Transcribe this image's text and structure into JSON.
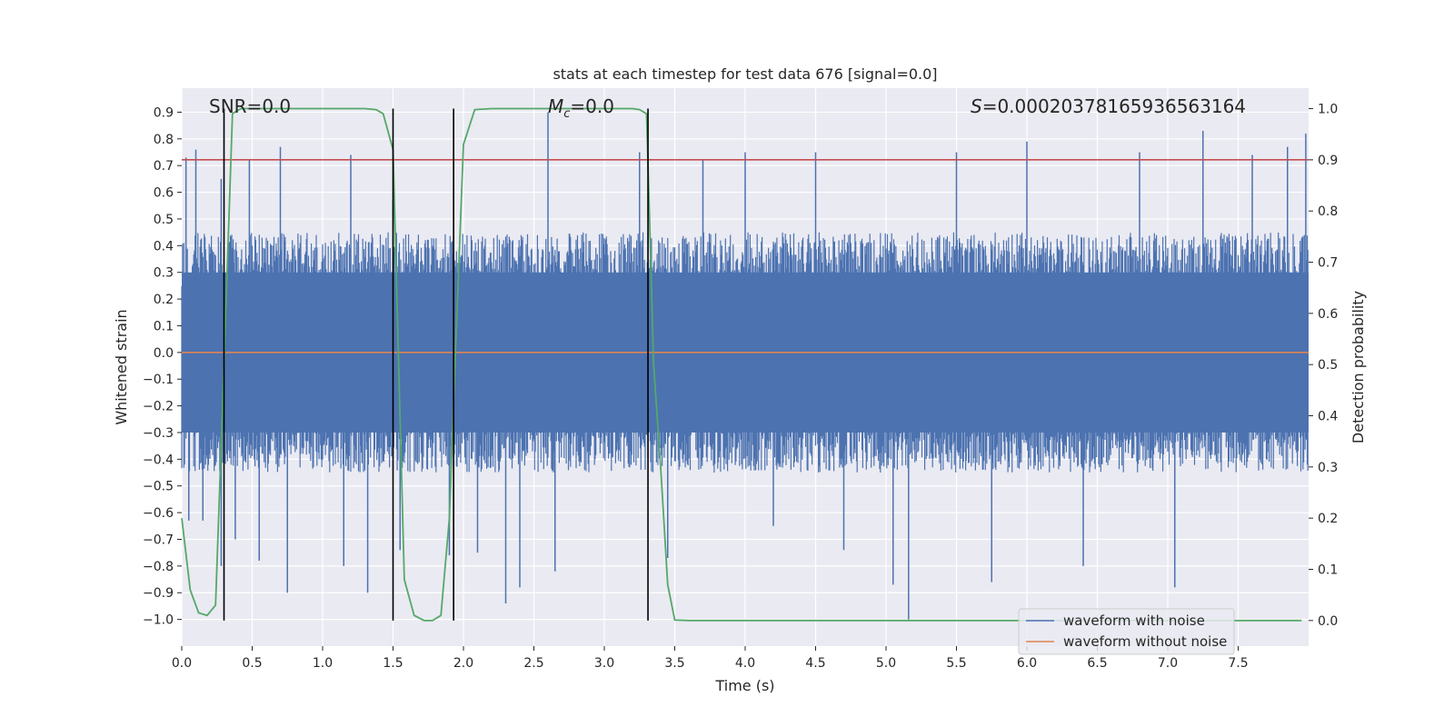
{
  "chart_data": {
    "type": "line",
    "title": "stats at each timestep for test data 676 [signal=0.0]",
    "xlabel": "Time (s)",
    "ylabel_left": "Whitened strain",
    "ylabel_right": "Detection probability",
    "xlim": [
      0.0,
      8.0
    ],
    "ylim_left": [
      -1.1,
      0.99
    ],
    "ylim_right": [
      -0.05,
      1.04
    ],
    "x_ticks": [
      "0.0",
      "0.5",
      "1.0",
      "1.5",
      "2.0",
      "2.5",
      "3.0",
      "3.5",
      "4.0",
      "4.5",
      "5.0",
      "5.5",
      "6.0",
      "6.5",
      "7.0",
      "7.5"
    ],
    "y_ticks_left": [
      "0.9",
      "0.8",
      "0.7",
      "0.6",
      "0.5",
      "0.4",
      "0.3",
      "0.2",
      "0.1",
      "0.0",
      "−0.1",
      "−0.2",
      "−0.3",
      "−0.4",
      "−0.5",
      "−0.6",
      "−0.7",
      "−0.8",
      "−0.9",
      "−1.0"
    ],
    "y_ticks_right": [
      "1.0",
      "0.9",
      "0.8",
      "0.7",
      "0.6",
      "0.5",
      "0.4",
      "0.3",
      "0.2",
      "0.1",
      "0.0"
    ],
    "annotations": {
      "snr_prefix": "SNR=",
      "snr_value": "0.0",
      "mc_symbol": "M",
      "mc_sub": "c",
      "mc_value": "=0.0",
      "s_symbol": "S",
      "s_value": "=0.0002037816593656316​4"
    },
    "legend": {
      "location": "lower right",
      "entries": [
        {
          "label": "waveform with noise",
          "color": "#4c72b0"
        },
        {
          "label": "waveform without noise",
          "color": "#dd8452"
        }
      ]
    },
    "series": [
      {
        "name": "waveform with noise",
        "axis": "left",
        "color": "#4c72b0",
        "noise_band": [
          -0.45,
          0.45
        ],
        "peaks": [
          {
            "x": 0.03,
            "y": 0.73
          },
          {
            "x": 0.05,
            "y": -0.63
          },
          {
            "x": 0.1,
            "y": 0.76
          },
          {
            "x": 0.15,
            "y": -0.63
          },
          {
            "x": 0.28,
            "y": 0.65
          },
          {
            "x": 0.28,
            "y": -0.8
          },
          {
            "x": 0.38,
            "y": -0.7
          },
          {
            "x": 0.48,
            "y": 0.72
          },
          {
            "x": 0.55,
            "y": -0.78
          },
          {
            "x": 0.7,
            "y": 0.77
          },
          {
            "x": 0.75,
            "y": -0.9
          },
          {
            "x": 1.15,
            "y": -0.8
          },
          {
            "x": 1.2,
            "y": 0.74
          },
          {
            "x": 1.32,
            "y": -0.9
          },
          {
            "x": 1.5,
            "y": 0.57
          },
          {
            "x": 1.55,
            "y": -0.74
          },
          {
            "x": 1.9,
            "y": -0.76
          },
          {
            "x": 2.1,
            "y": -0.75
          },
          {
            "x": 2.3,
            "y": -0.94
          },
          {
            "x": 2.4,
            "y": -0.88
          },
          {
            "x": 2.6,
            "y": 0.9
          },
          {
            "x": 2.65,
            "y": -0.82
          },
          {
            "x": 3.25,
            "y": 0.75
          },
          {
            "x": 3.45,
            "y": -0.77
          },
          {
            "x": 3.7,
            "y": 0.72
          },
          {
            "x": 4.0,
            "y": 0.75
          },
          {
            "x": 4.2,
            "y": -0.65
          },
          {
            "x": 4.5,
            "y": 0.75
          },
          {
            "x": 4.7,
            "y": -0.74
          },
          {
            "x": 5.05,
            "y": -0.87
          },
          {
            "x": 5.16,
            "y": -1.0
          },
          {
            "x": 5.5,
            "y": 0.75
          },
          {
            "x": 5.75,
            "y": -0.86
          },
          {
            "x": 6.0,
            "y": 0.79
          },
          {
            "x": 6.4,
            "y": -0.8
          },
          {
            "x": 6.8,
            "y": 0.75
          },
          {
            "x": 7.05,
            "y": -0.88
          },
          {
            "x": 7.25,
            "y": 0.83
          },
          {
            "x": 7.6,
            "y": 0.74
          },
          {
            "x": 7.85,
            "y": 0.77
          },
          {
            "x": 7.98,
            "y": 0.82
          }
        ]
      },
      {
        "name": "waveform without noise",
        "axis": "left",
        "color": "#dd8452",
        "x": [
          0.0,
          8.0
        ],
        "y": [
          0.0,
          0.0
        ]
      },
      {
        "name": "detection probability",
        "axis": "right",
        "color": "#55a868",
        "x": [
          0.0,
          0.06,
          0.12,
          0.18,
          0.24,
          0.3,
          0.36,
          0.42,
          0.6,
          1.0,
          1.3,
          1.38,
          1.43,
          1.5,
          1.58,
          1.65,
          1.72,
          1.78,
          1.84,
          1.9,
          1.94,
          2.0,
          2.08,
          2.2,
          2.6,
          3.0,
          3.2,
          3.25,
          3.3,
          3.35,
          3.4,
          3.45,
          3.5,
          3.6,
          4.0,
          5.0,
          6.0,
          7.0,
          7.95
        ],
        "y": [
          0.2,
          0.06,
          0.015,
          0.01,
          0.03,
          0.5,
          0.99,
          1.0,
          1.0,
          1.0,
          1.0,
          0.998,
          0.99,
          0.92,
          0.08,
          0.01,
          0.0,
          0.0,
          0.01,
          0.2,
          0.5,
          0.93,
          0.998,
          1.0,
          1.0,
          1.0,
          1.0,
          0.998,
          0.99,
          0.5,
          0.3,
          0.07,
          0.001,
          0.0,
          0.0,
          0.0,
          0.0,
          0.0,
          0.0
        ]
      },
      {
        "name": "threshold",
        "axis": "right",
        "color": "#c44e52",
        "x": [
          0.0,
          8.0
        ],
        "y": [
          0.9,
          0.9
        ]
      }
    ],
    "vertical_lines": [
      {
        "x": 0.3,
        "color": "#000000"
      },
      {
        "x": 1.5,
        "color": "#000000"
      },
      {
        "x": 1.93,
        "color": "#000000"
      },
      {
        "x": 3.31,
        "color": "#000000"
      }
    ]
  }
}
